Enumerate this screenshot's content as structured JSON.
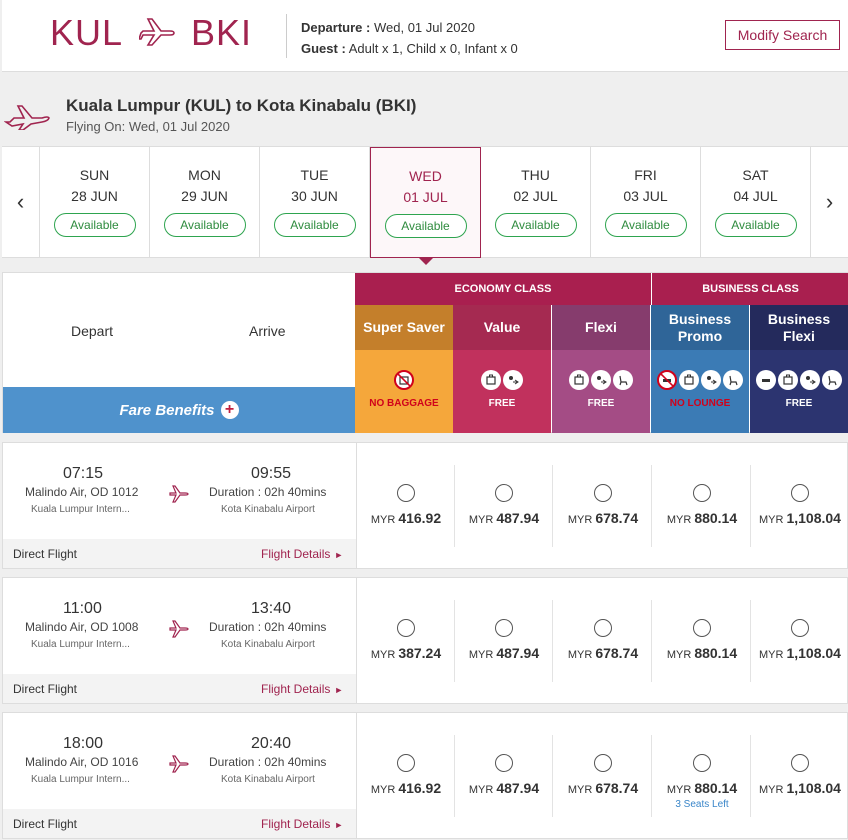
{
  "header": {
    "origin": "KUL",
    "destination": "BKI",
    "departure_label": "Departure :",
    "departure_value": "Wed, 01 Jul 2020",
    "guest_label": "Guest :",
    "guest_value": "Adult x 1, Child x 0, Infant x 0",
    "modify_label": "Modify Search"
  },
  "route": {
    "title": "Kuala Lumpur (KUL) to Kota Kinabalu (BKI)",
    "flying_on": "Flying On: Wed, 01 Jul 2020"
  },
  "dates": [
    {
      "day": "SUN",
      "date": "28 JUN",
      "status": "Available"
    },
    {
      "day": "MON",
      "date": "29 JUN",
      "status": "Available"
    },
    {
      "day": "TUE",
      "date": "30 JUN",
      "status": "Available"
    },
    {
      "day": "WED",
      "date": "01 JUL",
      "status": "Available"
    },
    {
      "day": "THU",
      "date": "02 JUL",
      "status": "Available"
    },
    {
      "day": "FRI",
      "date": "03 JUL",
      "status": "Available"
    },
    {
      "day": "SAT",
      "date": "04 JUL",
      "status": "Available"
    }
  ],
  "nav": {
    "prev": "‹",
    "next": "›"
  },
  "fare_header": {
    "depart": "Depart",
    "arrive": "Arrive",
    "benefits": "Fare Benefits",
    "benefits_plus": "+",
    "economy": "ECONOMY CLASS",
    "business": "BUSINESS CLASS"
  },
  "fares": [
    {
      "name": "Super Saver",
      "label": "NO BAGGAGE",
      "color": "#f5a73b",
      "head": "#c47f2b",
      "label_color": "#d0021b",
      "icons": [
        "no-baggage-icon"
      ]
    },
    {
      "name": "Value",
      "label": "FREE",
      "color": "#c1315d",
      "head": "#a52a51",
      "label_color": "#ffffff",
      "icons": [
        "baggage-icon",
        "seat-select-icon"
      ]
    },
    {
      "name": "Flexi",
      "label": "FREE",
      "color": "#a44c85",
      "head": "#863c6d",
      "label_color": "#ffffff",
      "icons": [
        "baggage-icon",
        "seat-select-icon",
        "seat-icon"
      ]
    },
    {
      "name": "Business Promo",
      "label": "NO LOUNGE",
      "color": "#3b7bb5",
      "head": "#2f6598",
      "label_color": "#d0021b",
      "icons": [
        "no-lounge-icon",
        "baggage-icon",
        "seat-select-icon",
        "seat-icon"
      ]
    },
    {
      "name": "Business Flexi",
      "label": "FREE",
      "color": "#2c3470",
      "head": "#242a5c",
      "label_color": "#ffffff",
      "icons": [
        "lounge-icon",
        "baggage-icon",
        "seat-select-icon",
        "seat-icon"
      ]
    }
  ],
  "flights": [
    {
      "depart_time": "07:15",
      "flight_no": "Malindo Air, OD 1012",
      "depart_airport": "Kuala Lumpur Intern...",
      "arrive_time": "09:55",
      "duration": "Duration : 02h 40mins",
      "arrive_airport": "Kota Kinabalu Airport",
      "type": "Direct Flight",
      "details": "Flight Details",
      "prices": [
        "416.92",
        "487.94",
        "678.74",
        "880.14",
        "1,108.04"
      ],
      "seats_left": ""
    },
    {
      "depart_time": "11:00",
      "flight_no": "Malindo Air, OD 1008",
      "depart_airport": "Kuala Lumpur Intern...",
      "arrive_time": "13:40",
      "duration": "Duration : 02h 40mins",
      "arrive_airport": "Kota Kinabalu Airport",
      "type": "Direct Flight",
      "details": "Flight Details",
      "prices": [
        "387.24",
        "487.94",
        "678.74",
        "880.14",
        "1,108.04"
      ],
      "seats_left": ""
    },
    {
      "depart_time": "18:00",
      "flight_no": "Malindo Air, OD 1016",
      "depart_airport": "Kuala Lumpur Intern...",
      "arrive_time": "20:40",
      "duration": "Duration : 02h 40mins",
      "arrive_airport": "Kota Kinabalu Airport",
      "type": "Direct Flight",
      "details": "Flight Details",
      "prices": [
        "416.92",
        "487.94",
        "678.74",
        "880.14",
        "1,108.04"
      ],
      "seats_left": "3 Seats Left"
    }
  ],
  "currency": "MYR",
  "colors": {
    "brand": "#a0244f",
    "available": "#2ea44f",
    "benefits_bar": "#4f92cc"
  }
}
